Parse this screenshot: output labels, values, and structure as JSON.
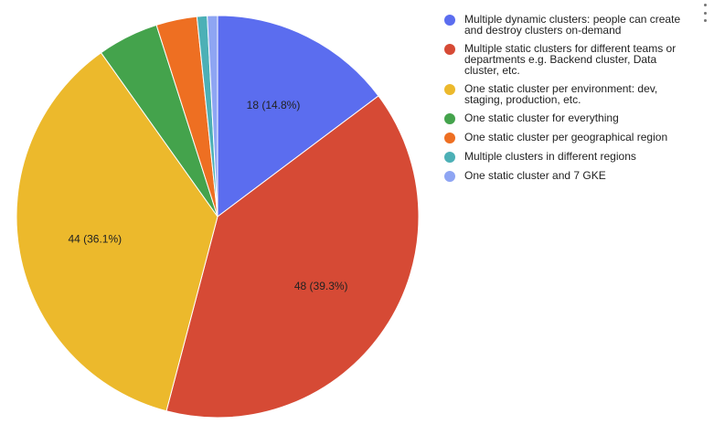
{
  "chart_data": {
    "type": "pie",
    "title": "",
    "legend_position": "right",
    "start_angle_deg": 0,
    "direction": "clockwise",
    "slices": [
      {
        "name": "Multiple dynamic clusters: people can create and destroy clusters on-demand",
        "value": 18,
        "label": "18 (14.8%)",
        "color": "#5b6def"
      },
      {
        "name": "Multiple static clusters for different teams or departments e.g. Backend cluster, Data cluster, etc.",
        "value": 48,
        "label": "48 (39.3%)",
        "color": "#d64a35"
      },
      {
        "name": "One static cluster per environment: dev, staging, production, etc.",
        "value": 44,
        "label": "44 (36.1%)",
        "color": "#ecb92c"
      },
      {
        "name": "One static cluster for everything",
        "value": 6,
        "label": "",
        "color": "#44a34c"
      },
      {
        "name": "One static cluster per geographical region",
        "value": 4,
        "label": "",
        "color": "#ee6f22"
      },
      {
        "name": "Multiple clusters in different regions",
        "value": 1,
        "label": "",
        "color": "#4cb0b6"
      },
      {
        "name": "One static cluster and 7 GKE",
        "value": 1,
        "label": "",
        "color": "#8ea5f3"
      }
    ]
  }
}
